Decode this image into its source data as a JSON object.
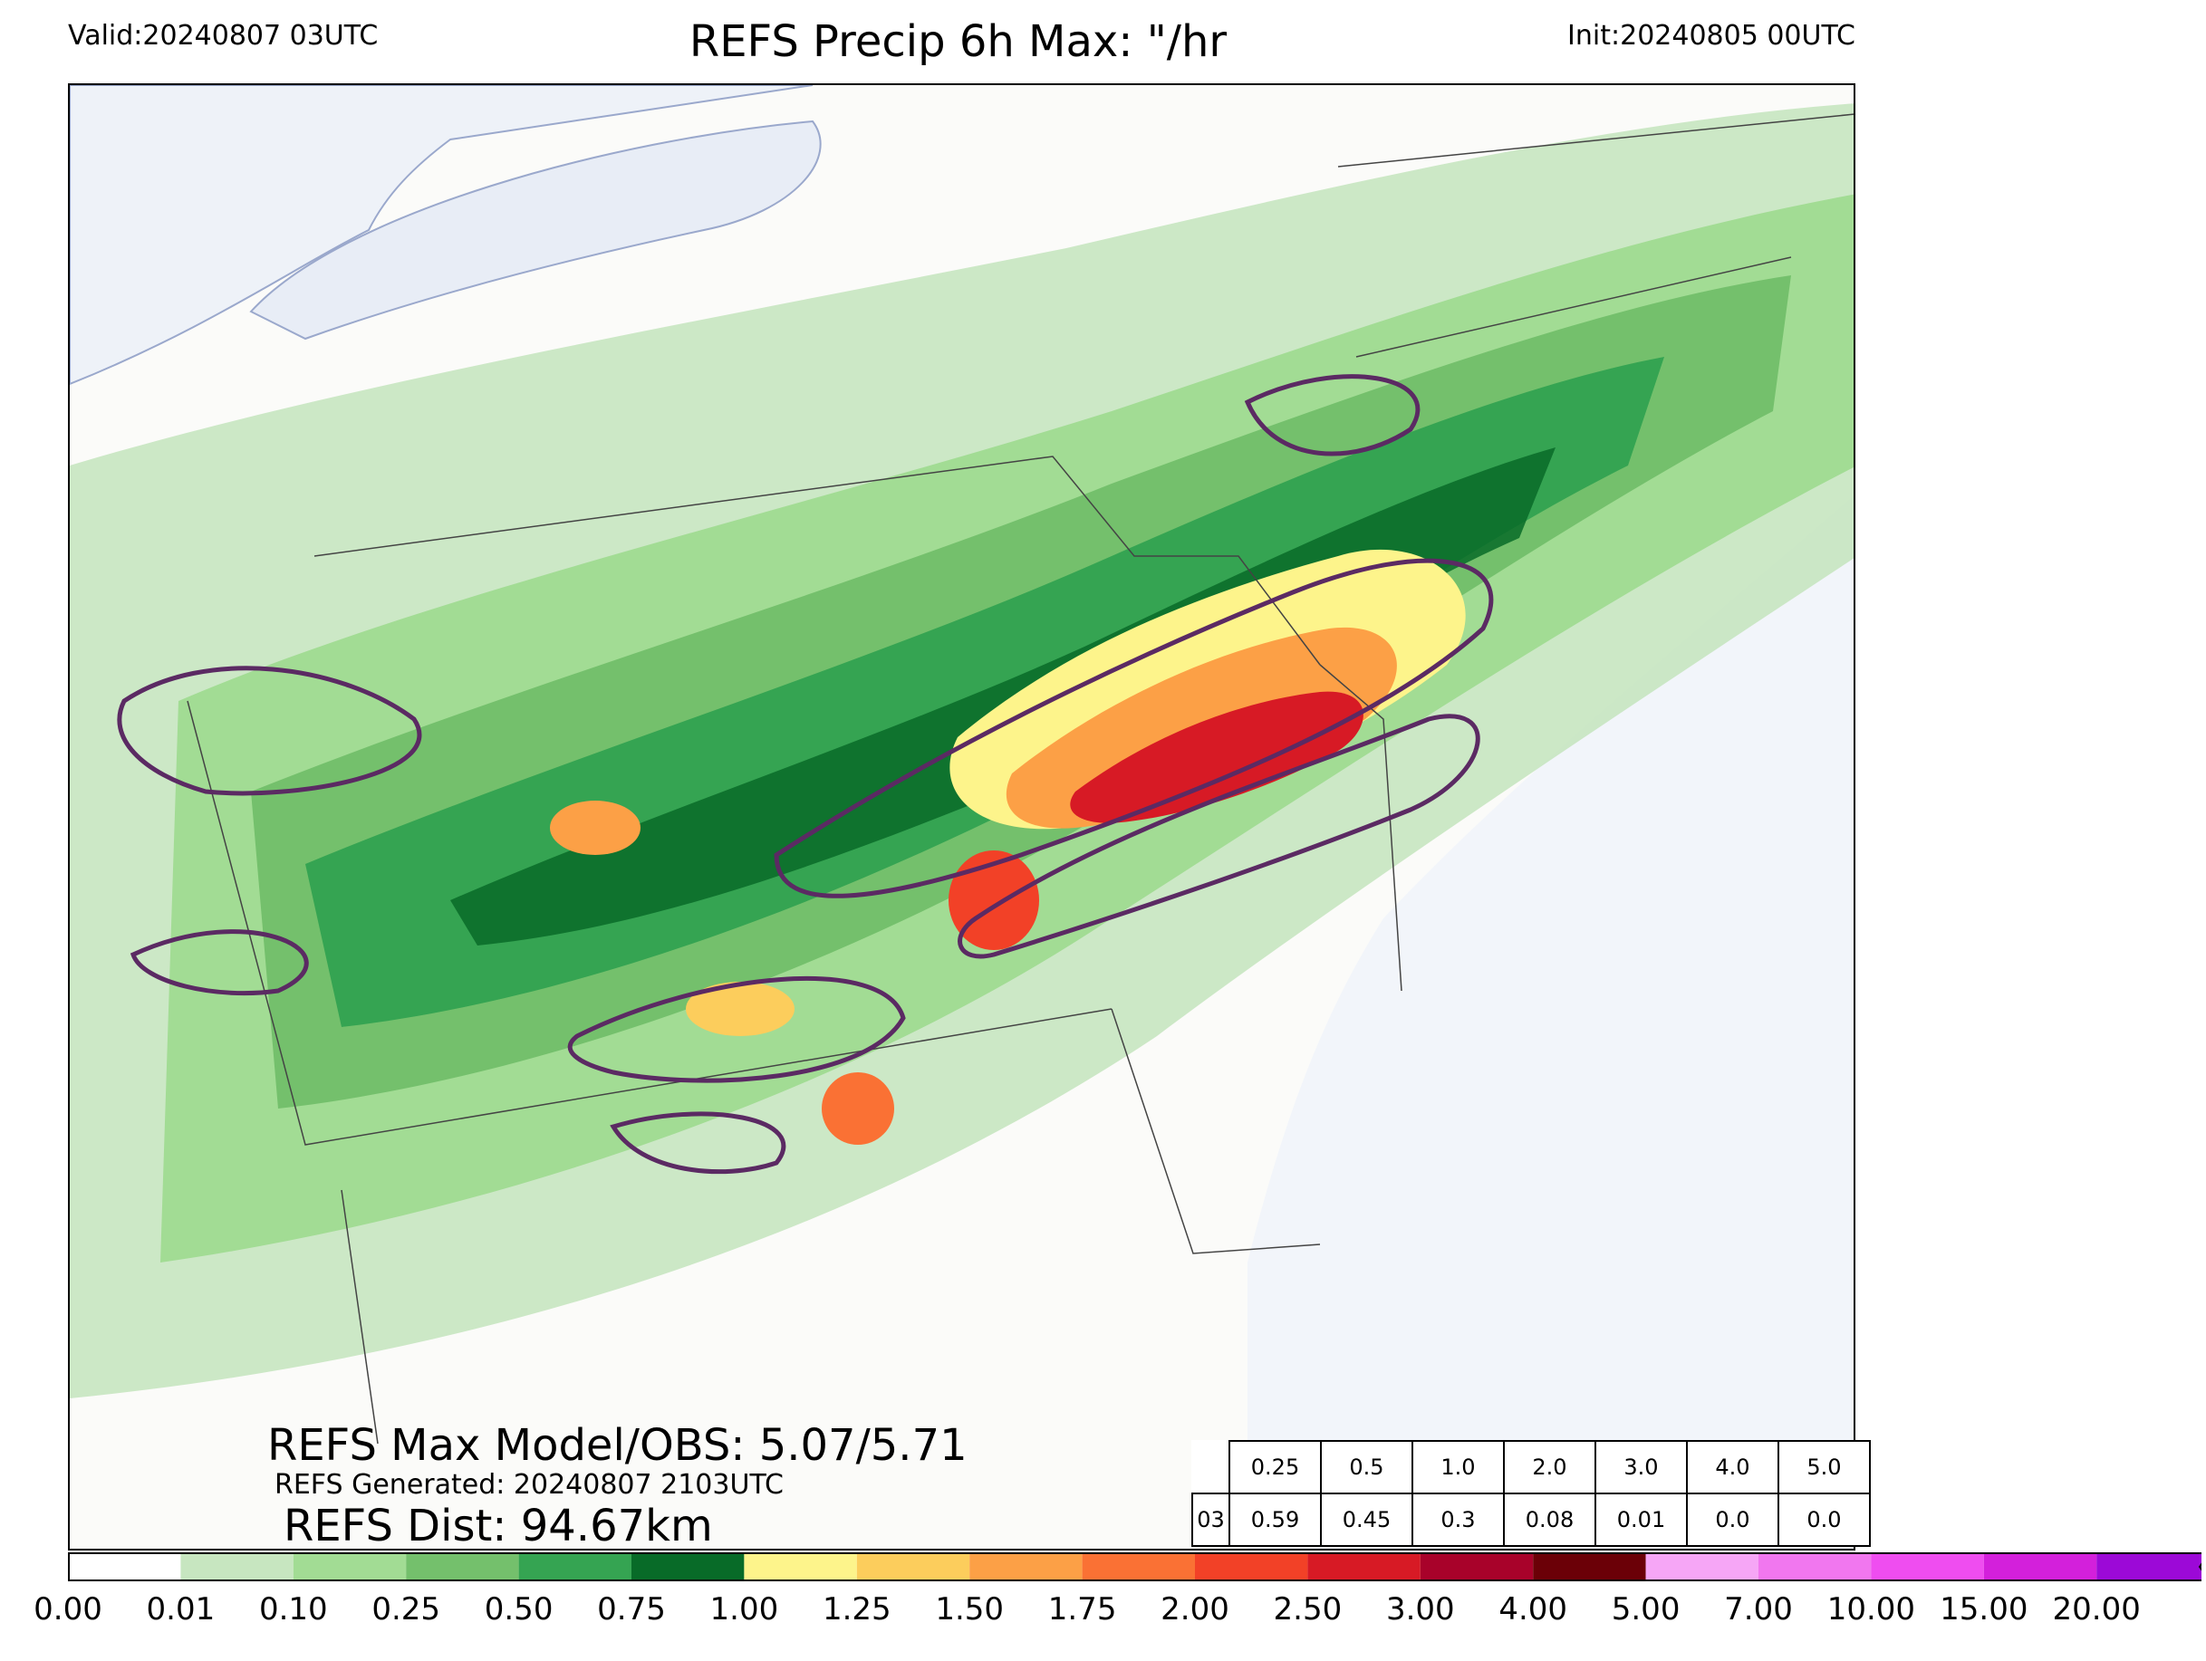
{
  "header": {
    "valid": "Valid:20240807 03UTC",
    "title": "REFS Precip 6h Max: \"/hr",
    "init": "Init:20240805 00UTC"
  },
  "annotations": {
    "max": "REFS Max Model/OBS: 5.07/5.71",
    "generated": "REFS Generated: 20240807 2103UTC",
    "dist": "REFS Dist: 94.67km"
  },
  "stats_table": {
    "thresholds": [
      "0.25",
      "0.5",
      "1.0",
      "2.0",
      "3.0",
      "4.0",
      "5.0"
    ],
    "row_label": "03",
    "values": [
      "0.59",
      "0.45",
      "0.3",
      "0.08",
      "0.01",
      "0.0",
      "0.0"
    ]
  },
  "colorbar": {
    "ticks": [
      "0.00",
      "0.01",
      "0.10",
      "0.25",
      "0.50",
      "0.75",
      "1.00",
      "1.25",
      "1.50",
      "1.75",
      "2.00",
      "2.50",
      "3.00",
      "4.00",
      "5.00",
      "7.00",
      "10.00",
      "15.00",
      "20.00"
    ],
    "colors": [
      "#ffffff",
      "#c7e6c0",
      "#a2dc94",
      "#74c06c",
      "#35a452",
      "#086b28",
      "#fdf48b",
      "#fccd5c",
      "#fca046",
      "#fa7134",
      "#f24127",
      "#d71a25",
      "#a8022a",
      "#6b0007",
      "#f6a6f6",
      "#f177ef",
      "#ef4df0",
      "#d320db",
      "#9c09d7"
    ],
    "extend_color": "#560d90"
  },
  "map_colors": {
    "water": "#eef2f8",
    "land": "#fbfbf9",
    "contour": "#5b2a63",
    "border": "#444444"
  }
}
